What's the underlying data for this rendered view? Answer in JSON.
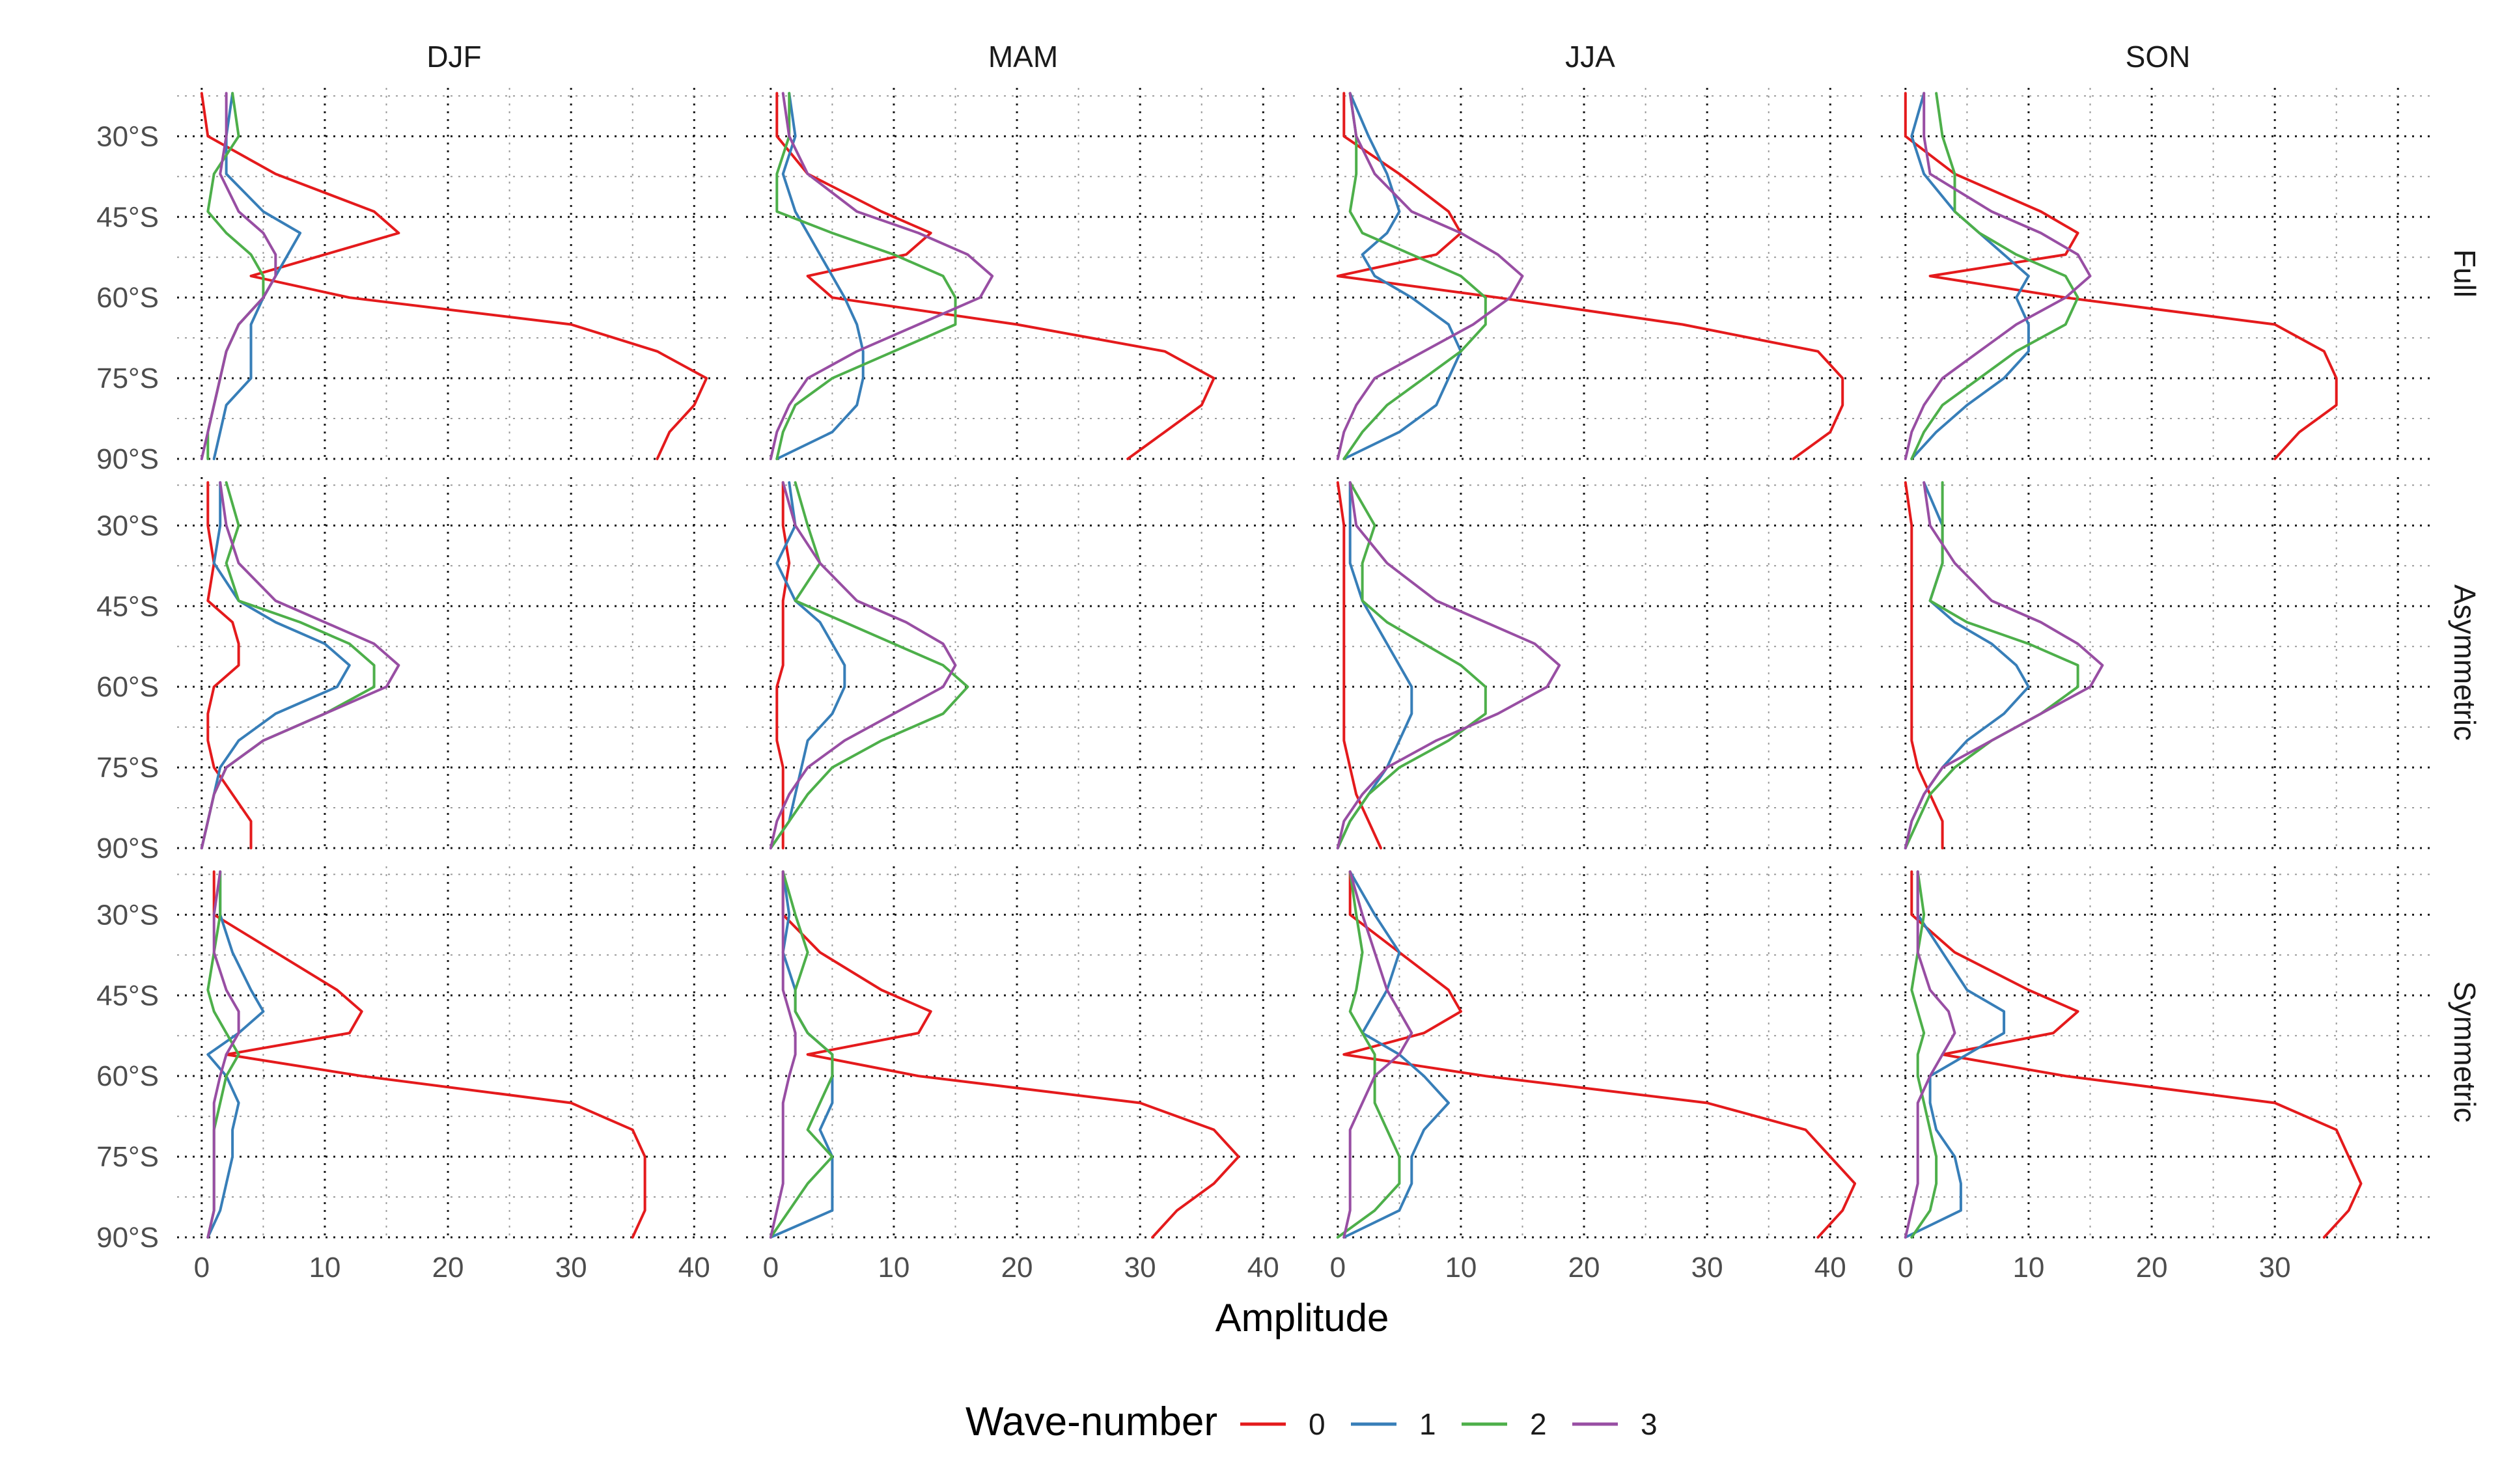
{
  "chart_data": {
    "type": "line",
    "layout": "facet-grid",
    "xlabel": "Amplitude",
    "ylabel": "",
    "columns": [
      "DJF",
      "MAM",
      "JJA",
      "SON"
    ],
    "rows": [
      "Full",
      "Asymmetric",
      "Symmetric"
    ],
    "xlim": [
      -2,
      43
    ],
    "ylim": [
      -90,
      -21
    ],
    "x_ticks": {
      "DJF": [
        "0",
        "10",
        "20",
        "30",
        "40"
      ],
      "MAM": [
        "0",
        "10",
        "20",
        "30",
        "40"
      ],
      "JJA": [
        "0",
        "10",
        "20",
        "30",
        "40"
      ],
      "SON": [
        "0",
        "10",
        "20",
        "30"
      ]
    },
    "y_ticks": [
      {
        "value": -30,
        "label": "30°S"
      },
      {
        "value": -45,
        "label": "45°S"
      },
      {
        "value": -60,
        "label": "60°S"
      },
      {
        "value": -75,
        "label": "75°S"
      },
      {
        "value": -90,
        "label": "90°S"
      }
    ],
    "legend": {
      "title": "Wave-number",
      "position": "bottom",
      "entries": [
        {
          "label": "0",
          "color": "#e41a1c"
        },
        {
          "label": "1",
          "color": "#377eb8"
        },
        {
          "label": "2",
          "color": "#4daf4a"
        },
        {
          "label": "3",
          "color": "#984ea3"
        }
      ]
    },
    "lat": [
      -22,
      -30,
      -37,
      -44,
      -48,
      -52,
      -56,
      -60,
      -65,
      -70,
      -75,
      -80,
      -85,
      -90
    ],
    "panels": [
      {
        "row": "Full",
        "col": "DJF",
        "series": [
          {
            "name": "0",
            "values": [
              0,
              0.5,
              6,
              14,
              16,
              10,
              4,
              12,
              30,
              37,
              41,
              40,
              38,
              37
            ]
          },
          {
            "name": "1",
            "values": [
              2.5,
              2,
              2,
              5,
              8,
              7,
              6,
              5,
              4,
              4,
              4,
              2,
              1.5,
              1
            ]
          },
          {
            "name": "2",
            "values": [
              2.5,
              3,
              1,
              0.5,
              2,
              4,
              5,
              5,
              3,
              2,
              1.5,
              1,
              0.5,
              0.5
            ]
          },
          {
            "name": "3",
            "values": [
              2,
              2,
              1.5,
              3,
              5,
              6,
              6,
              5,
              3,
              2,
              1.5,
              1,
              0.5,
              0
            ]
          }
        ]
      },
      {
        "row": "Full",
        "col": "MAM",
        "series": [
          {
            "name": "0",
            "values": [
              0.5,
              0.5,
              3,
              9,
              13,
              11,
              3,
              5,
              20,
              32,
              36,
              35,
              32,
              29
            ]
          },
          {
            "name": "1",
            "values": [
              1.5,
              2,
              1,
              2,
              3,
              4,
              5,
              6,
              7,
              7.5,
              7.5,
              7,
              5,
              0.5
            ]
          },
          {
            "name": "2",
            "values": [
              1.5,
              1.5,
              0.5,
              0.5,
              5,
              10,
              14,
              15,
              15,
              10,
              5,
              2,
              1,
              0.5
            ]
          },
          {
            "name": "3",
            "values": [
              1,
              1.5,
              3,
              7,
              12,
              16,
              18,
              17,
              12,
              7,
              3,
              1.5,
              0.5,
              0
            ]
          }
        ]
      },
      {
        "row": "Full",
        "col": "JJA",
        "series": [
          {
            "name": "0",
            "values": [
              0.5,
              0.5,
              5,
              9,
              10,
              8,
              0,
              13,
              28,
              39,
              41,
              41,
              40,
              37
            ]
          },
          {
            "name": "1",
            "values": [
              1,
              2.5,
              4,
              5,
              4,
              2,
              3,
              6,
              9,
              10,
              9,
              8,
              5,
              0.5
            ]
          },
          {
            "name": "2",
            "values": [
              1,
              1.5,
              1.5,
              1,
              2,
              6,
              10,
              12,
              12,
              10,
              7,
              4,
              2,
              0.5
            ]
          },
          {
            "name": "3",
            "values": [
              1,
              1.5,
              3,
              6,
              10,
              13,
              15,
              14,
              11,
              7,
              3,
              1.5,
              0.5,
              0
            ]
          }
        ]
      },
      {
        "row": "Full",
        "col": "SON",
        "series": [
          {
            "name": "0",
            "values": [
              0,
              0,
              4,
              11,
              14,
              13,
              2,
              13,
              30,
              34,
              35,
              35,
              32,
              30
            ]
          },
          {
            "name": "1",
            "values": [
              1.5,
              0.5,
              1.5,
              4,
              6,
              8,
              10,
              9,
              10,
              10,
              8,
              5,
              2.5,
              0.5
            ]
          },
          {
            "name": "2",
            "values": [
              2.5,
              3,
              4,
              4,
              6,
              9,
              13,
              14,
              13,
              9,
              6,
              3,
              1.5,
              0.5
            ]
          },
          {
            "name": "3",
            "values": [
              1.5,
              1.5,
              2,
              7,
              11,
              14,
              15,
              13,
              9,
              6,
              3,
              1.5,
              0.5,
              0
            ]
          }
        ]
      },
      {
        "row": "Asymmetric",
        "col": "DJF",
        "series": [
          {
            "name": "0",
            "values": [
              0.5,
              0.5,
              1,
              0.5,
              2.5,
              3,
              3,
              1,
              0.5,
              0.5,
              1,
              2.5,
              4,
              4
            ]
          },
          {
            "name": "1",
            "values": [
              1.5,
              1.5,
              1,
              3,
              6,
              10,
              12,
              11,
              6,
              3,
              1.5,
              1,
              0.5,
              0
            ]
          },
          {
            "name": "2",
            "values": [
              2,
              3,
              2,
              3,
              8,
              12,
              14,
              14,
              10,
              5,
              2,
              1,
              0.5,
              0
            ]
          },
          {
            "name": "3",
            "values": [
              1.5,
              2,
              3,
              6,
              10,
              14,
              16,
              15,
              10,
              5,
              2,
              1,
              0.5,
              0
            ]
          }
        ]
      },
      {
        "row": "Asymmetric",
        "col": "MAM",
        "series": [
          {
            "name": "0",
            "values": [
              1,
              1,
              1.5,
              1,
              1,
              1,
              1,
              0.5,
              0.5,
              0.5,
              1,
              1,
              1,
              1
            ]
          },
          {
            "name": "1",
            "values": [
              1.5,
              2,
              0.5,
              2,
              4,
              5,
              6,
              6,
              5,
              3,
              2.5,
              2,
              1.5,
              0
            ]
          },
          {
            "name": "2",
            "values": [
              2,
              3,
              4,
              2,
              6,
              10,
              14,
              16,
              14,
              9,
              5,
              3,
              1.5,
              0
            ]
          },
          {
            "name": "3",
            "values": [
              1,
              2,
              4,
              7,
              11,
              14,
              15,
              14,
              10,
              6,
              3,
              1.5,
              0.5,
              0
            ]
          }
        ]
      },
      {
        "row": "Asymmetric",
        "col": "JJA",
        "series": [
          {
            "name": "0",
            "values": [
              0,
              0.5,
              0.5,
              0.5,
              0.5,
              0.5,
              0.5,
              0.5,
              0.5,
              0.5,
              1,
              1.5,
              2.5,
              3.5
            ]
          },
          {
            "name": "1",
            "values": [
              1,
              1,
              1,
              2,
              3,
              4,
              5,
              6,
              6,
              5,
              4,
              2.5,
              1,
              0
            ]
          },
          {
            "name": "2",
            "values": [
              1,
              3,
              2,
              2,
              4,
              7,
              10,
              12,
              12,
              9,
              5,
              2.5,
              1,
              0
            ]
          },
          {
            "name": "3",
            "values": [
              1,
              1.5,
              4,
              8,
              12,
              16,
              18,
              17,
              13,
              8,
              4,
              2,
              0.5,
              0
            ]
          }
        ]
      },
      {
        "row": "Asymmetric",
        "col": "SON",
        "series": [
          {
            "name": "0",
            "values": [
              0,
              0.5,
              0.5,
              0.5,
              0.5,
              0.5,
              0.5,
              0.5,
              0.5,
              0.5,
              1,
              2,
              3,
              3
            ]
          },
          {
            "name": "1",
            "values": [
              1.5,
              3,
              3,
              2,
              4,
              7,
              9,
              10,
              8,
              5,
              3,
              1.5,
              0.5,
              0
            ]
          },
          {
            "name": "2",
            "values": [
              3,
              3,
              3,
              2,
              5,
              10,
              14,
              14,
              11,
              7,
              4,
              2,
              1,
              0
            ]
          },
          {
            "name": "3",
            "values": [
              1.5,
              2,
              4,
              7,
              11,
              14,
              16,
              15,
              11,
              7,
              3,
              1.5,
              0.5,
              0
            ]
          }
        ]
      },
      {
        "row": "Symmetric",
        "col": "DJF",
        "series": [
          {
            "name": "0",
            "values": [
              1,
              1,
              6,
              11,
              13,
              12,
              2,
              13,
              30,
              35,
              36,
              36,
              36,
              35
            ]
          },
          {
            "name": "1",
            "values": [
              1.5,
              1.5,
              2.5,
              4,
              5,
              3,
              0.5,
              2,
              3,
              2.5,
              2.5,
              2,
              1.5,
              0.5
            ]
          },
          {
            "name": "2",
            "values": [
              1.5,
              1.5,
              1,
              0.5,
              1,
              2,
              3,
              2,
              1.5,
              1,
              1,
              1,
              1,
              0.5
            ]
          },
          {
            "name": "3",
            "values": [
              1.5,
              1,
              1,
              2,
              3,
              3,
              2,
              1.5,
              1,
              1,
              1,
              1,
              1,
              0.5
            ]
          }
        ]
      },
      {
        "row": "Symmetric",
        "col": "MAM",
        "series": [
          {
            "name": "0",
            "values": [
              1,
              1,
              4,
              9,
              13,
              12,
              3,
              12,
              30,
              36,
              38,
              36,
              33,
              31
            ]
          },
          {
            "name": "1",
            "values": [
              1,
              1.5,
              1,
              2,
              2,
              3,
              5,
              5,
              5,
              4,
              5,
              5,
              5,
              0
            ]
          },
          {
            "name": "2",
            "values": [
              1,
              2,
              3,
              2,
              2,
              3,
              5,
              5,
              4,
              3,
              5,
              3,
              1.5,
              0
            ]
          },
          {
            "name": "3",
            "values": [
              1,
              1,
              1,
              1,
              1.5,
              2,
              2,
              1.5,
              1,
              1,
              1,
              1,
              0.5,
              0
            ]
          }
        ]
      },
      {
        "row": "Symmetric",
        "col": "JJA",
        "series": [
          {
            "name": "0",
            "values": [
              1,
              1,
              5,
              9,
              10,
              7,
              0.5,
              12,
              30,
              38,
              40,
              42,
              41,
              39
            ]
          },
          {
            "name": "1",
            "values": [
              1,
              3,
              5,
              4,
              3,
              2,
              5,
              7,
              9,
              7,
              6,
              6,
              5,
              0.5
            ]
          },
          {
            "name": "2",
            "values": [
              1,
              1.5,
              2,
              1.5,
              1,
              2,
              3,
              3,
              3,
              4,
              5,
              5,
              3,
              0
            ]
          },
          {
            "name": "3",
            "values": [
              1,
              2,
              3,
              4,
              5,
              6,
              5,
              3,
              2,
              1,
              1,
              1,
              1,
              0.5
            ]
          }
        ]
      },
      {
        "row": "Symmetric",
        "col": "SON",
        "series": [
          {
            "name": "0",
            "values": [
              0.5,
              0.5,
              4,
              10,
              14,
              12,
              3,
              13,
              30,
              35,
              36,
              37,
              36,
              34
            ]
          },
          {
            "name": "1",
            "values": [
              1,
              1,
              3,
              5,
              8,
              8,
              5,
              2,
              2,
              2.5,
              4,
              4.5,
              4.5,
              0
            ]
          },
          {
            "name": "2",
            "values": [
              1,
              1.5,
              1,
              0.5,
              1,
              1.5,
              1,
              1,
              1.5,
              2,
              2.5,
              2.5,
              2,
              0.5
            ]
          },
          {
            "name": "3",
            "values": [
              1,
              1,
              1,
              2,
              3.5,
              4,
              3,
              2,
              1,
              1,
              1,
              1,
              0.5,
              0
            ]
          }
        ]
      }
    ]
  }
}
